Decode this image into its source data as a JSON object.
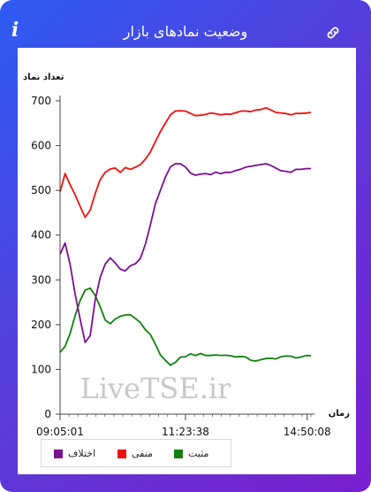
{
  "header": {
    "title": "وضعیت نمادهای بازار",
    "info_icon": "info-icon",
    "link_icon": "link-icon"
  },
  "colors": {
    "frame_gradient_start": "#2d5cf2",
    "frame_gradient_end": "#7a1fd0",
    "positive": "#108010",
    "negative": "#ee1111",
    "difference": "#7a1090",
    "watermark": "#c8c8c8"
  },
  "watermark": "LiveTSE.ir",
  "chart_data": {
    "type": "line",
    "ylabel": "تعداد نماد",
    "xlabel": "زمان",
    "ylim": [
      0,
      700
    ],
    "yticks": [
      0,
      100,
      200,
      300,
      400,
      500,
      600,
      700
    ],
    "xticks": [
      "09:05:01",
      "11:23:38",
      "14:50:08"
    ],
    "x": [
      0,
      0.02,
      0.04,
      0.06,
      0.08,
      0.1,
      0.12,
      0.14,
      0.16,
      0.18,
      0.2,
      0.22,
      0.24,
      0.26,
      0.28,
      0.3,
      0.32,
      0.34,
      0.36,
      0.38,
      0.4,
      0.42,
      0.44,
      0.46,
      0.48,
      0.5,
      0.52,
      0.54,
      0.56,
      0.58,
      0.6,
      0.62,
      0.64,
      0.66,
      0.68,
      0.7,
      0.72,
      0.74,
      0.76,
      0.78,
      0.8,
      0.82,
      0.84,
      0.86,
      0.88,
      0.9,
      0.92,
      0.94,
      0.96,
      0.98,
      1
    ],
    "legend": [
      {
        "name": "اختلاف",
        "color": "#7a1090"
      },
      {
        "name": "منفی",
        "color": "#ee1111"
      },
      {
        "name": "مثبت",
        "color": "#108010"
      }
    ],
    "series": [
      {
        "name": "منفی",
        "color": "#ee1111",
        "values": [
          500,
          535,
          515,
          490,
          465,
          440,
          455,
          495,
          525,
          540,
          545,
          548,
          542,
          548,
          545,
          552,
          555,
          570,
          585,
          610,
          630,
          650,
          668,
          678,
          680,
          678,
          672,
          670,
          670,
          670,
          670,
          670,
          670,
          671,
          672,
          673,
          674,
          675,
          676,
          678,
          680,
          682,
          680,
          676,
          672,
          670,
          670,
          672,
          674,
          675,
          675
        ]
      },
      {
        "name": "مثبت",
        "color": "#108010",
        "values": [
          140,
          150,
          180,
          220,
          255,
          275,
          280,
          265,
          240,
          210,
          205,
          212,
          218,
          222,
          220,
          215,
          205,
          190,
          175,
          155,
          130,
          118,
          112,
          115,
          125,
          130,
          133,
          133,
          133,
          133,
          132,
          132,
          132,
          132,
          130,
          130,
          128,
          125,
          122,
          120,
          120,
          122,
          124,
          126,
          128,
          128,
          128,
          128,
          128,
          128,
          128
        ]
      },
      {
        "name": "اختلاف",
        "color": "#7a1090",
        "values": [
          360,
          385,
          335,
          270,
          210,
          160,
          175,
          255,
          305,
          335,
          350,
          335,
          322,
          322,
          330,
          335,
          345,
          380,
          420,
          470,
          500,
          530,
          555,
          562,
          560,
          550,
          538,
          536,
          536,
          536,
          538,
          540,
          540,
          541,
          542,
          543,
          546,
          550,
          554,
          556,
          558,
          560,
          558,
          550,
          544,
          540,
          542,
          544,
          546,
          547,
          548
        ]
      }
    ]
  }
}
